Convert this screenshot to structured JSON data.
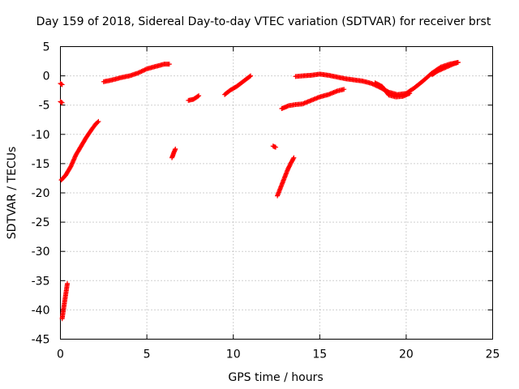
{
  "chart_data": {
    "type": "scatter",
    "title": "Day 159 of 2018, Sidereal Day-to-day VTEC variation (SDTVAR) for receiver brst",
    "xlabel": "GPS time / hours",
    "ylabel": "SDTVAR / TECUs",
    "xlim": [
      0,
      25
    ],
    "ylim": [
      -45,
      5
    ],
    "xticks": [
      0,
      5,
      10,
      15,
      20,
      25
    ],
    "yticks": [
      5,
      0,
      -5,
      -10,
      -15,
      -20,
      -25,
      -30,
      -35,
      -40,
      -45
    ],
    "grid": true,
    "marker": "+",
    "colors": {
      "series": "#ff0000",
      "grid": "#a0a0a0",
      "frame": "#000000"
    },
    "series": [
      {
        "name": "SDTVAR",
        "segments": [
          {
            "x": [
              0.0,
              0.1
            ],
            "y": [
              -1.3,
              -1.5
            ]
          },
          {
            "x": [
              0.0,
              0.1
            ],
            "y": [
              -4.4,
              -4.6
            ]
          },
          {
            "x": [
              0.05,
              0.3,
              0.6,
              0.9,
              1.2,
              1.5,
              1.8,
              2.05,
              2.2
            ],
            "y": [
              -17.8,
              -17.0,
              -15.5,
              -13.5,
              -12.0,
              -10.5,
              -9.2,
              -8.2,
              -7.8
            ]
          },
          {
            "x": [
              0.1,
              0.15,
              0.2,
              0.25,
              0.3,
              0.35,
              0.4
            ],
            "y": [
              -41.5,
              -40.5,
              -39.5,
              -38.5,
              -37.5,
              -36.5,
              -35.5
            ]
          },
          {
            "x": [
              2.5,
              3.0,
              3.5,
              4.0,
              4.5,
              5.0,
              5.5,
              6.0,
              6.3
            ],
            "y": [
              -1.0,
              -0.7,
              -0.3,
              0.0,
              0.5,
              1.2,
              1.6,
              2.0,
              2.0
            ]
          },
          {
            "x": [
              6.45,
              6.55,
              6.65
            ],
            "y": [
              -14.0,
              -13.2,
              -12.5
            ]
          },
          {
            "x": [
              7.4,
              7.7,
              8.0
            ],
            "y": [
              -4.2,
              -4.0,
              -3.4
            ]
          },
          {
            "x": [
              9.5,
              9.8,
              10.2,
              10.6,
              11.0
            ],
            "y": [
              -3.2,
              -2.5,
              -1.8,
              -0.9,
              0.0
            ]
          },
          {
            "x": [
              12.3,
              12.45
            ],
            "y": [
              -12.0,
              -12.2
            ]
          },
          {
            "x": [
              12.55,
              12.75,
              12.95,
              13.15,
              13.35,
              13.5
            ],
            "y": [
              -20.5,
              -19.0,
              -17.5,
              -16.0,
              -14.8,
              -14.0
            ]
          },
          {
            "x": [
              12.8,
              13.2,
              13.6,
              14.0,
              14.5,
              15.0,
              15.5,
              16.0,
              16.4
            ],
            "y": [
              -5.6,
              -5.1,
              -4.9,
              -4.8,
              -4.2,
              -3.6,
              -3.2,
              -2.6,
              -2.3
            ]
          },
          {
            "x": [
              13.6,
              14.0,
              14.5,
              15.0,
              15.5,
              16.0,
              16.5,
              17.0,
              17.5,
              18.0,
              18.5,
              19.0,
              19.5,
              20.0,
              20.5,
              21.0,
              21.5,
              22.0,
              22.5,
              23.0
            ],
            "y": [
              -0.1,
              0.0,
              0.1,
              0.3,
              0.1,
              -0.2,
              -0.5,
              -0.7,
              -0.9,
              -1.3,
              -2.0,
              -2.8,
              -3.2,
              -3.0,
              -2.0,
              -0.8,
              0.5,
              1.5,
              2.0,
              2.3
            ]
          },
          {
            "x": [
              18.2,
              18.6,
              19.0,
              19.4,
              19.8,
              20.2
            ],
            "y": [
              -1.2,
              -1.8,
              -3.3,
              -3.6,
              -3.5,
              -3.0
            ]
          },
          {
            "x": [
              21.5,
              21.8,
              22.1,
              22.4,
              22.7,
              23.0
            ],
            "y": [
              0.2,
              0.8,
              1.2,
              1.6,
              2.0,
              2.3
            ]
          }
        ]
      }
    ]
  }
}
